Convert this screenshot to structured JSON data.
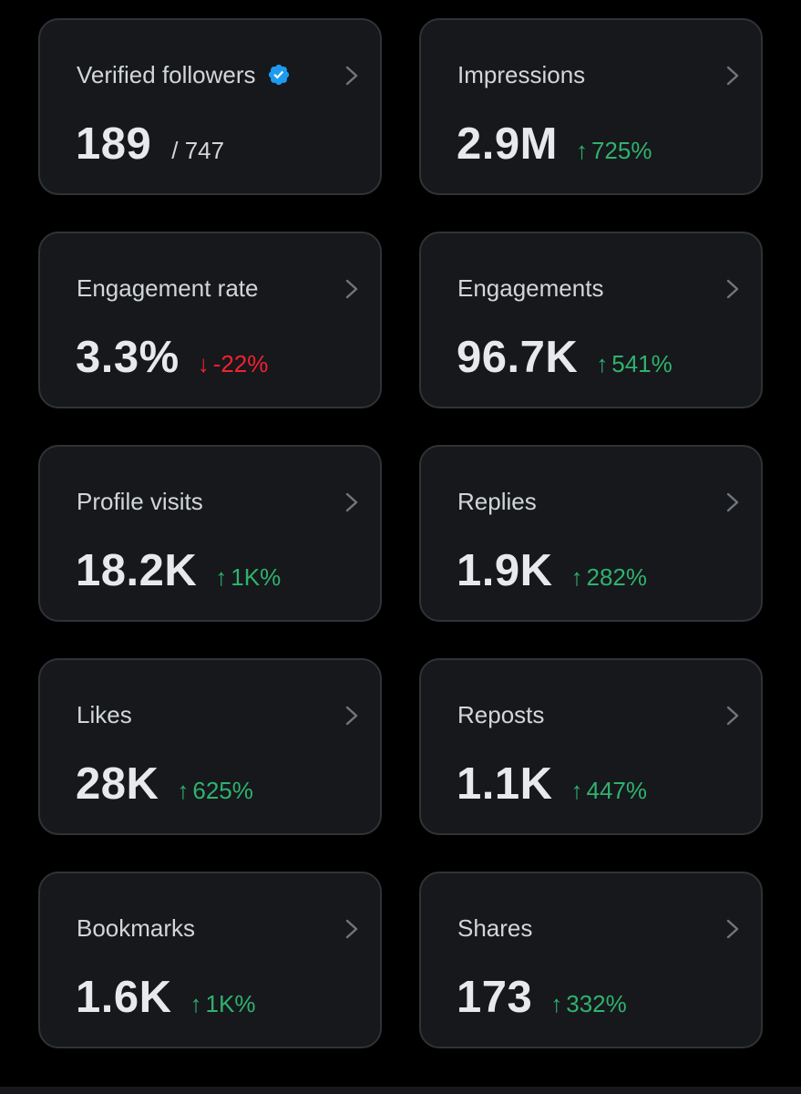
{
  "colors": {
    "background": "#000000",
    "card": "#16181c",
    "border": "#2f3336",
    "text_primary": "#e7e9ea",
    "text_secondary": "#d3d6d9",
    "positive": "#2fb26e",
    "negative": "#f4212e",
    "verified": "#1d9bf0"
  },
  "cards": [
    {
      "label": "Verified followers",
      "value": "189",
      "secondary": "/ 747",
      "icon": "verified-badge-icon"
    },
    {
      "label": "Impressions",
      "value": "2.9M",
      "change": "725%",
      "arrow": "↑",
      "direction": "up"
    },
    {
      "label": "Engagement rate",
      "value": "3.3%",
      "change": "-22%",
      "arrow": "↓",
      "direction": "down"
    },
    {
      "label": "Engagements",
      "value": "96.7K",
      "change": "541%",
      "arrow": "↑",
      "direction": "up"
    },
    {
      "label": "Profile visits",
      "value": "18.2K",
      "change": "1K%",
      "arrow": "↑",
      "direction": "up"
    },
    {
      "label": "Replies",
      "value": "1.9K",
      "change": "282%",
      "arrow": "↑",
      "direction": "up"
    },
    {
      "label": "Likes",
      "value": "28K",
      "change": "625%",
      "arrow": "↑",
      "direction": "up"
    },
    {
      "label": "Reposts",
      "value": "1.1K",
      "change": "447%",
      "arrow": "↑",
      "direction": "up"
    },
    {
      "label": "Bookmarks",
      "value": "1.6K",
      "change": "1K%",
      "arrow": "↑",
      "direction": "up"
    },
    {
      "label": "Shares",
      "value": "173",
      "change": "332%",
      "arrow": "↑",
      "direction": "up"
    }
  ]
}
